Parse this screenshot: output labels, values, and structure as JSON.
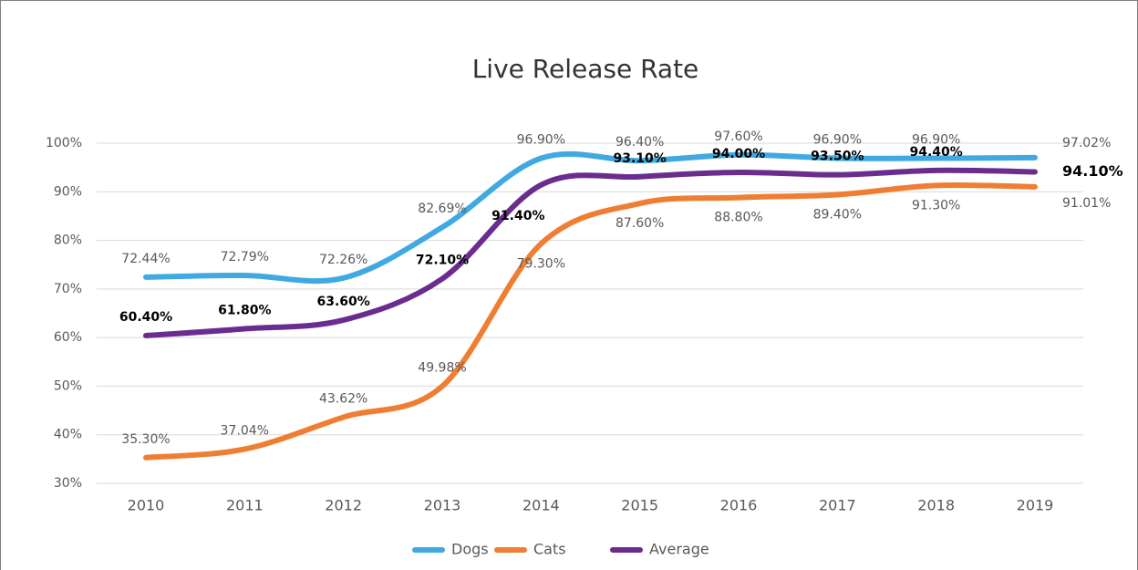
{
  "chart_data": {
    "type": "line",
    "title": "Live Release Rate",
    "categories": [
      "2010",
      "2011",
      "2012",
      "2013",
      "2014",
      "2015",
      "2016",
      "2017",
      "2018",
      "2019"
    ],
    "series": [
      {
        "name": "Dogs",
        "color": "#41a9e1",
        "values": [
          72.44,
          72.79,
          72.26,
          82.69,
          96.9,
          96.4,
          97.6,
          96.9,
          96.9,
          97.02
        ],
        "value_labels": [
          "72.44%",
          "72.79%",
          "72.26%",
          "82.69%",
          "96.90%",
          "96.40%",
          "97.60%",
          "96.90%",
          "96.90%",
          "97.02%"
        ]
      },
      {
        "name": "Cats",
        "color": "#ef7e33",
        "values": [
          35.3,
          37.04,
          43.62,
          49.98,
          79.3,
          87.6,
          88.8,
          89.4,
          91.3,
          91.01
        ],
        "value_labels": [
          "35.30%",
          "37.04%",
          "43.62%",
          "49.98%",
          "79.30%",
          "87.60%",
          "88.80%",
          "89.40%",
          "91.30%",
          "91.01%"
        ]
      },
      {
        "name": "Average",
        "color": "#6a2d8f",
        "values": [
          60.4,
          61.8,
          63.6,
          72.1,
          91.4,
          93.1,
          94.0,
          93.5,
          94.4,
          94.1
        ],
        "value_labels": [
          "60.40%",
          "61.80%",
          "63.60%",
          "72.10%",
          "91.40%",
          "93.10%",
          "94.00%",
          "93.50%",
          "94.40%",
          "94.10%"
        ]
      }
    ],
    "ylim": [
      30,
      100
    ],
    "yticks": [
      {
        "value": 30,
        "label": "30%"
      },
      {
        "value": 40,
        "label": "40%"
      },
      {
        "value": 50,
        "label": "50%"
      },
      {
        "value": 60,
        "label": "60%"
      },
      {
        "value": 70,
        "label": "70%"
      },
      {
        "value": 80,
        "label": "80%"
      },
      {
        "value": 90,
        "label": "90%"
      },
      {
        "value": 100,
        "label": "100%"
      }
    ],
    "grid": true,
    "legend": "bottom"
  }
}
